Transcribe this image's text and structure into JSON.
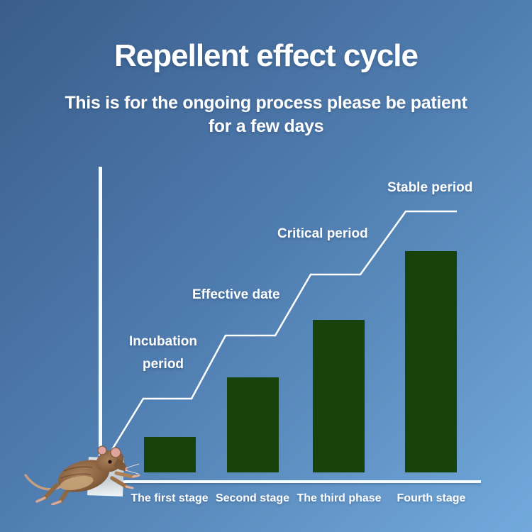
{
  "header": {
    "title": "Repellent effect cycle",
    "subtitle_line1": "This is for the ongoing process please be patient",
    "subtitle_line2": "for a few days"
  },
  "colors": {
    "background_top_left": "#3a5d8c",
    "background_mid": "#4f7cae",
    "background_bottom_right": "#72a9dc",
    "bar": "#17430a",
    "axis_and_line": "#ffffff",
    "text": "#ffffff",
    "card": "#d6dde3"
  },
  "chart_data": {
    "type": "bar",
    "title": "Repellent effect cycle",
    "categories": [
      "The first stage",
      "Second stage",
      "The third phase",
      "Fourth stage"
    ],
    "values": [
      16,
      43,
      69,
      100
    ],
    "value_scale": "relative bar height as % of tallest bar (no numeric axis labels shown)",
    "annotations": [
      "Incubation period",
      "Effective date",
      "Critical period",
      "Stable period"
    ],
    "step_line": true,
    "legend": "none",
    "gridlines": false,
    "xlabel": "",
    "ylabel": ""
  },
  "decor": {
    "mouse_icon": "running-mouse",
    "card": "white-card-at-axis-origin"
  }
}
